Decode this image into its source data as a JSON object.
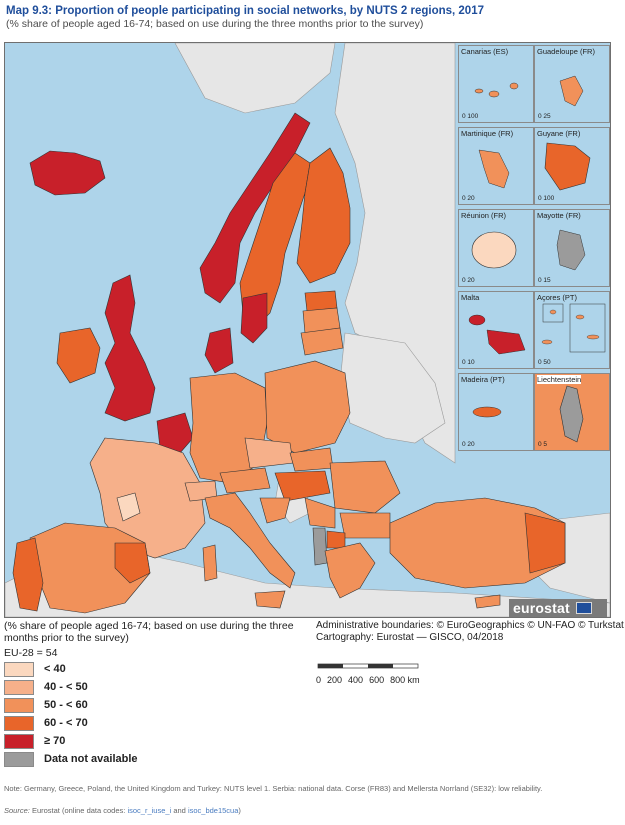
{
  "map": {
    "number": "Map 9.3:",
    "title": "Proportion of people participating in social networks, by NUTS 2 regions, 2017",
    "subtitle": "(% share of people aged 16-74; based on use during the three months prior to the survey)"
  },
  "insets": [
    {
      "name": "Canarias (ES)",
      "scale": "0  100"
    },
    {
      "name": "Guadeloupe (FR)",
      "scale": "0  25"
    },
    {
      "name": "Martinique (FR)",
      "scale": "0  20"
    },
    {
      "name": "Guyane (FR)",
      "scale": "0  100"
    },
    {
      "name": "Réunion (FR)",
      "scale": "0  20"
    },
    {
      "name": "Mayotte (FR)",
      "scale": "0  15"
    },
    {
      "name": "Malta",
      "scale": "0  10"
    },
    {
      "name": "Açores (PT)",
      "scale": "0  50"
    },
    {
      "name": "Madeira (PT)",
      "scale": "0  20"
    },
    {
      "name": "Liechtenstein",
      "scale": "0  5"
    }
  ],
  "legend": {
    "heading": "(% share of people aged 16-74; based on use during the three months prior to the survey)",
    "eu_value": "EU-28 = 54",
    "classes": [
      {
        "label": "< 40",
        "color": "#fbd8bf"
      },
      {
        "label": "40 - < 50",
        "color": "#f6b08a"
      },
      {
        "label": "50 - < 60",
        "color": "#f1915a"
      },
      {
        "label": "60 - < 70",
        "color": "#e8652a"
      },
      {
        "label": "≥ 70",
        "color": "#c8202a"
      },
      {
        "label": "Data not available",
        "color": "#9b9b9b"
      }
    ]
  },
  "credits": {
    "line1": "Administrative boundaries: © EuroGeographics © UN-FAO © Turkstat",
    "line2": "Cartography: Eurostat — GISCO, 04/2018"
  },
  "scalebar": {
    "ticks": [
      "0",
      "200",
      "400",
      "600",
      "800 km"
    ]
  },
  "logo": "eurostat",
  "note": "Note: Germany, Greece, Poland, the United Kingdom and Turkey: NUTS level 1. Serbia: national data. Corse (FR83) and Mellersta Norrland (SE32): low reliability.",
  "source": {
    "prefix": "Source:",
    "text": "Eurostat (online data codes:",
    "code1": "isoc_r_iuse_i",
    "and": "and",
    "code2": "isoc_bde15cua",
    "suffix": ")"
  },
  "colors": {
    "sea": "#aed4ea",
    "non_eu_land": "#e6e6e6",
    "brand": "#1f4e9b"
  }
}
